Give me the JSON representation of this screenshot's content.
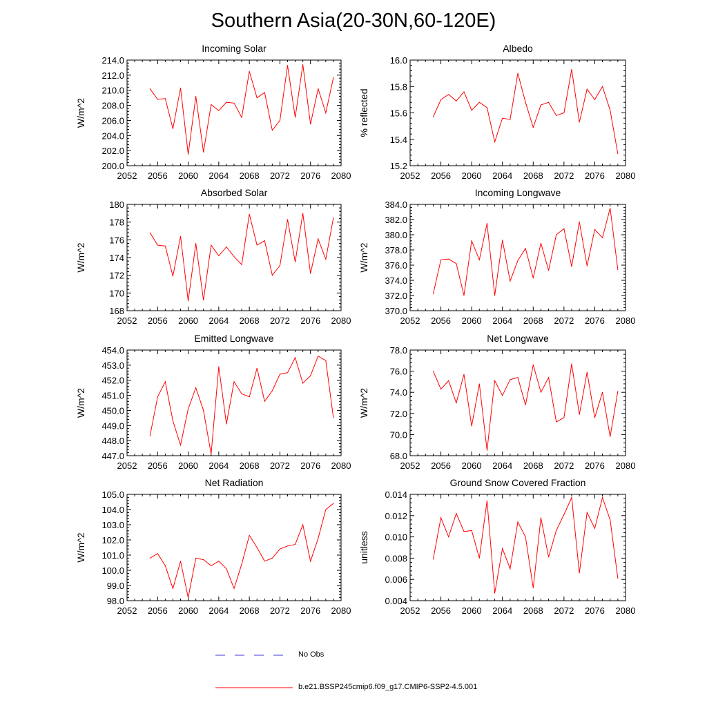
{
  "title": "Southern Asia(20-30N,60-120E)",
  "legend": {
    "obs_label": "No Obs",
    "model_label": "b.e21.BSSP245cmip6.f09_g17.CMIP6-SSP2-4.5.001",
    "obs_color": "#3a3ad0",
    "model_color": "#ff0000"
  },
  "chart_data": [
    {
      "type": "line",
      "title": "Incoming Solar",
      "ylabel": "W/m^2",
      "xlabel": "",
      "xlim": [
        2052,
        2080
      ],
      "ylim": [
        200.0,
        214.0
      ],
      "xticks": [
        2052,
        2056,
        2060,
        2064,
        2068,
        2072,
        2076,
        2080
      ],
      "yticks": [
        "200.0",
        "202.0",
        "204.0",
        "206.0",
        "208.0",
        "210.0",
        "212.0",
        "214.0"
      ],
      "x": [
        2055,
        2056,
        2057,
        2058,
        2059,
        2060,
        2061,
        2062,
        2063,
        2064,
        2065,
        2066,
        2067,
        2068,
        2069,
        2070,
        2071,
        2072,
        2073,
        2074,
        2075,
        2076,
        2077,
        2078,
        2079
      ],
      "series": [
        {
          "values": [
            210.2,
            208.8,
            208.9,
            204.9,
            210.3,
            201.5,
            209.2,
            201.8,
            208.1,
            207.3,
            208.4,
            208.3,
            206.4,
            212.5,
            209.0,
            209.7,
            204.7,
            206.0,
            213.3,
            206.4,
            213.4,
            205.5,
            210.2,
            207.0,
            211.7
          ]
        }
      ]
    },
    {
      "type": "line",
      "title": "Albedo",
      "ylabel": "% reflected",
      "xlabel": "",
      "xlim": [
        2052,
        2080
      ],
      "ylim": [
        15.2,
        16.0
      ],
      "xticks": [
        2052,
        2056,
        2060,
        2064,
        2068,
        2072,
        2076,
        2080
      ],
      "yticks": [
        "15.2",
        "15.4",
        "15.6",
        "15.8",
        "16.0"
      ],
      "x": [
        2055,
        2056,
        2057,
        2058,
        2059,
        2060,
        2061,
        2062,
        2063,
        2064,
        2065,
        2066,
        2067,
        2068,
        2069,
        2070,
        2071,
        2072,
        2073,
        2074,
        2075,
        2076,
        2077,
        2078,
        2079
      ],
      "series": [
        {
          "values": [
            15.57,
            15.7,
            15.74,
            15.69,
            15.76,
            15.62,
            15.68,
            15.64,
            15.38,
            15.56,
            15.55,
            15.9,
            15.68,
            15.49,
            15.66,
            15.68,
            15.58,
            15.6,
            15.93,
            15.53,
            15.78,
            15.7,
            15.8,
            15.62,
            15.29
          ]
        }
      ]
    },
    {
      "type": "line",
      "title": "Absorbed Solar",
      "ylabel": "W/m^2",
      "xlabel": "",
      "xlim": [
        2052,
        2080
      ],
      "ylim": [
        168,
        180
      ],
      "xticks": [
        2052,
        2056,
        2060,
        2064,
        2068,
        2072,
        2076,
        2080
      ],
      "yticks": [
        "168",
        "170",
        "172",
        "174",
        "176",
        "178",
        "180"
      ],
      "x": [
        2055,
        2056,
        2057,
        2058,
        2059,
        2060,
        2061,
        2062,
        2063,
        2064,
        2065,
        2066,
        2067,
        2068,
        2069,
        2070,
        2071,
        2072,
        2073,
        2074,
        2075,
        2076,
        2077,
        2078,
        2079
      ],
      "series": [
        {
          "values": [
            176.8,
            175.4,
            175.3,
            171.9,
            176.4,
            169.1,
            175.6,
            169.2,
            175.4,
            174.2,
            175.2,
            174.1,
            173.2,
            178.9,
            175.4,
            175.9,
            172.0,
            173.1,
            178.3,
            173.5,
            179.0,
            172.2,
            176.1,
            173.8,
            178.5
          ]
        }
      ]
    },
    {
      "type": "line",
      "title": "Incoming Longwave",
      "ylabel": "W/m^2",
      "xlabel": "",
      "xlim": [
        2052,
        2080
      ],
      "ylim": [
        370.0,
        384.0
      ],
      "xticks": [
        2052,
        2056,
        2060,
        2064,
        2068,
        2072,
        2076,
        2080
      ],
      "yticks": [
        "370.0",
        "372.0",
        "374.0",
        "376.0",
        "378.0",
        "380.0",
        "382.0",
        "384.0"
      ],
      "x": [
        2055,
        2056,
        2057,
        2058,
        2059,
        2060,
        2061,
        2062,
        2063,
        2064,
        2065,
        2066,
        2067,
        2068,
        2069,
        2070,
        2071,
        2072,
        2073,
        2074,
        2075,
        2076,
        2077,
        2078,
        2079
      ],
      "series": [
        {
          "values": [
            372.2,
            376.7,
            376.8,
            376.2,
            372.0,
            379.2,
            376.7,
            381.5,
            372.0,
            379.3,
            373.9,
            376.6,
            378.2,
            374.3,
            378.9,
            375.3,
            380.0,
            380.8,
            375.8,
            381.7,
            375.9,
            380.7,
            379.6,
            383.5,
            375.4
          ]
        }
      ]
    },
    {
      "type": "line",
      "title": "Emitted Longwave",
      "ylabel": "W/m^2",
      "xlabel": "",
      "xlim": [
        2052,
        2080
      ],
      "ylim": [
        447.0,
        454.0
      ],
      "xticks": [
        2052,
        2056,
        2060,
        2064,
        2068,
        2072,
        2076,
        2080
      ],
      "yticks": [
        "447.0",
        "448.0",
        "449.0",
        "450.0",
        "451.0",
        "452.0",
        "453.0",
        "454.0"
      ],
      "x": [
        2055,
        2056,
        2057,
        2058,
        2059,
        2060,
        2061,
        2062,
        2063,
        2064,
        2065,
        2066,
        2067,
        2068,
        2069,
        2070,
        2071,
        2072,
        2073,
        2074,
        2075,
        2076,
        2077,
        2078,
        2079
      ],
      "series": [
        {
          "values": [
            448.3,
            450.9,
            451.9,
            449.3,
            447.7,
            450.1,
            451.5,
            450.0,
            447.1,
            452.9,
            449.1,
            451.9,
            451.1,
            450.9,
            452.8,
            450.6,
            451.3,
            452.4,
            452.5,
            453.5,
            451.8,
            452.3,
            453.6,
            453.3,
            449.5
          ]
        }
      ]
    },
    {
      "type": "line",
      "title": "Net Longwave",
      "ylabel": "W/m^2",
      "xlabel": "",
      "xlim": [
        2052,
        2080
      ],
      "ylim": [
        68.0,
        78.0
      ],
      "xticks": [
        2052,
        2056,
        2060,
        2064,
        2068,
        2072,
        2076,
        2080
      ],
      "yticks": [
        "68.0",
        "70.0",
        "72.0",
        "74.0",
        "76.0",
        "78.0"
      ],
      "x": [
        2055,
        2056,
        2057,
        2058,
        2059,
        2060,
        2061,
        2062,
        2063,
        2064,
        2065,
        2066,
        2067,
        2068,
        2069,
        2070,
        2071,
        2072,
        2073,
        2074,
        2075,
        2076,
        2077,
        2078,
        2079
      ],
      "series": [
        {
          "values": [
            76.0,
            74.3,
            75.1,
            73.0,
            75.7,
            70.8,
            74.8,
            68.5,
            75.1,
            73.7,
            75.2,
            75.4,
            72.8,
            76.6,
            74.0,
            75.4,
            71.2,
            71.6,
            76.7,
            71.9,
            75.9,
            71.6,
            74.0,
            69.8,
            74.1
          ]
        }
      ]
    },
    {
      "type": "line",
      "title": "Net Radiation",
      "ylabel": "W/m^2",
      "xlabel": "",
      "xlim": [
        2052,
        2080
      ],
      "ylim": [
        98.0,
        105.0
      ],
      "xticks": [
        2052,
        2056,
        2060,
        2064,
        2068,
        2072,
        2076,
        2080
      ],
      "yticks": [
        "98.0",
        "99.0",
        "100.0",
        "101.0",
        "102.0",
        "103.0",
        "104.0",
        "105.0"
      ],
      "x": [
        2055,
        2056,
        2057,
        2058,
        2059,
        2060,
        2061,
        2062,
        2063,
        2064,
        2065,
        2066,
        2067,
        2068,
        2069,
        2070,
        2071,
        2072,
        2073,
        2074,
        2075,
        2076,
        2077,
        2078,
        2079
      ],
      "series": [
        {
          "values": [
            100.8,
            101.1,
            100.3,
            98.8,
            100.6,
            98.2,
            100.8,
            100.7,
            100.3,
            100.6,
            100.1,
            98.8,
            100.4,
            102.3,
            101.5,
            100.6,
            100.8,
            101.4,
            101.6,
            101.7,
            103.0,
            100.6,
            102.1,
            104.0,
            104.4
          ]
        }
      ]
    },
    {
      "type": "line",
      "title": "Ground Snow Covered Fraction",
      "ylabel": "unitless",
      "xlabel": "",
      "xlim": [
        2052,
        2080
      ],
      "ylim": [
        0.004,
        0.014
      ],
      "xticks": [
        2052,
        2056,
        2060,
        2064,
        2068,
        2072,
        2076,
        2080
      ],
      "yticks": [
        "0.004",
        "0.006",
        "0.008",
        "0.010",
        "0.012",
        "0.014"
      ],
      "x": [
        2055,
        2056,
        2057,
        2058,
        2059,
        2060,
        2061,
        2062,
        2063,
        2064,
        2065,
        2066,
        2067,
        2068,
        2069,
        2070,
        2071,
        2072,
        2073,
        2074,
        2075,
        2076,
        2077,
        2078,
        2079
      ],
      "series": [
        {
          "values": [
            0.0079,
            0.0118,
            0.01,
            0.0122,
            0.0105,
            0.0106,
            0.008,
            0.0134,
            0.0047,
            0.0089,
            0.007,
            0.0114,
            0.01,
            0.0052,
            0.0118,
            0.0081,
            0.0106,
            0.0121,
            0.0137,
            0.0066,
            0.0123,
            0.0108,
            0.0137,
            0.0116,
            0.0061
          ]
        }
      ]
    }
  ]
}
